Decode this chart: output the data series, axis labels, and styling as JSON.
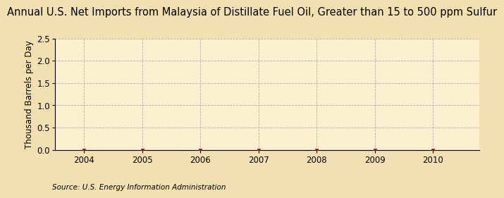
{
  "title": "Annual U.S. Net Imports from Malaysia of Distillate Fuel Oil, Greater than 15 to 500 ppm Sulfur",
  "ylabel": "Thousand Barrels per Day",
  "source": "Source: U.S. Energy Information Administration",
  "years": [
    2004,
    2005,
    2006,
    2007,
    2008,
    2009,
    2010
  ],
  "values": [
    0.0,
    0.0,
    0.0,
    0.0,
    0.0,
    0.0,
    0.0
  ],
  "xlim": [
    2003.5,
    2010.8
  ],
  "ylim": [
    0.0,
    2.5
  ],
  "yticks": [
    0.0,
    0.5,
    1.0,
    1.5,
    2.0,
    2.5
  ],
  "xticks": [
    2004,
    2005,
    2006,
    2007,
    2008,
    2009,
    2010
  ],
  "background_color": "#f2e0b0",
  "plot_bg_color": "#faf0d0",
  "line_color": "#8b1a1a",
  "marker_color": "#8b1a1a",
  "grid_color": "#aaaaaa",
  "title_fontsize": 10.5,
  "label_fontsize": 8.5,
  "tick_fontsize": 8.5,
  "source_fontsize": 7.5
}
